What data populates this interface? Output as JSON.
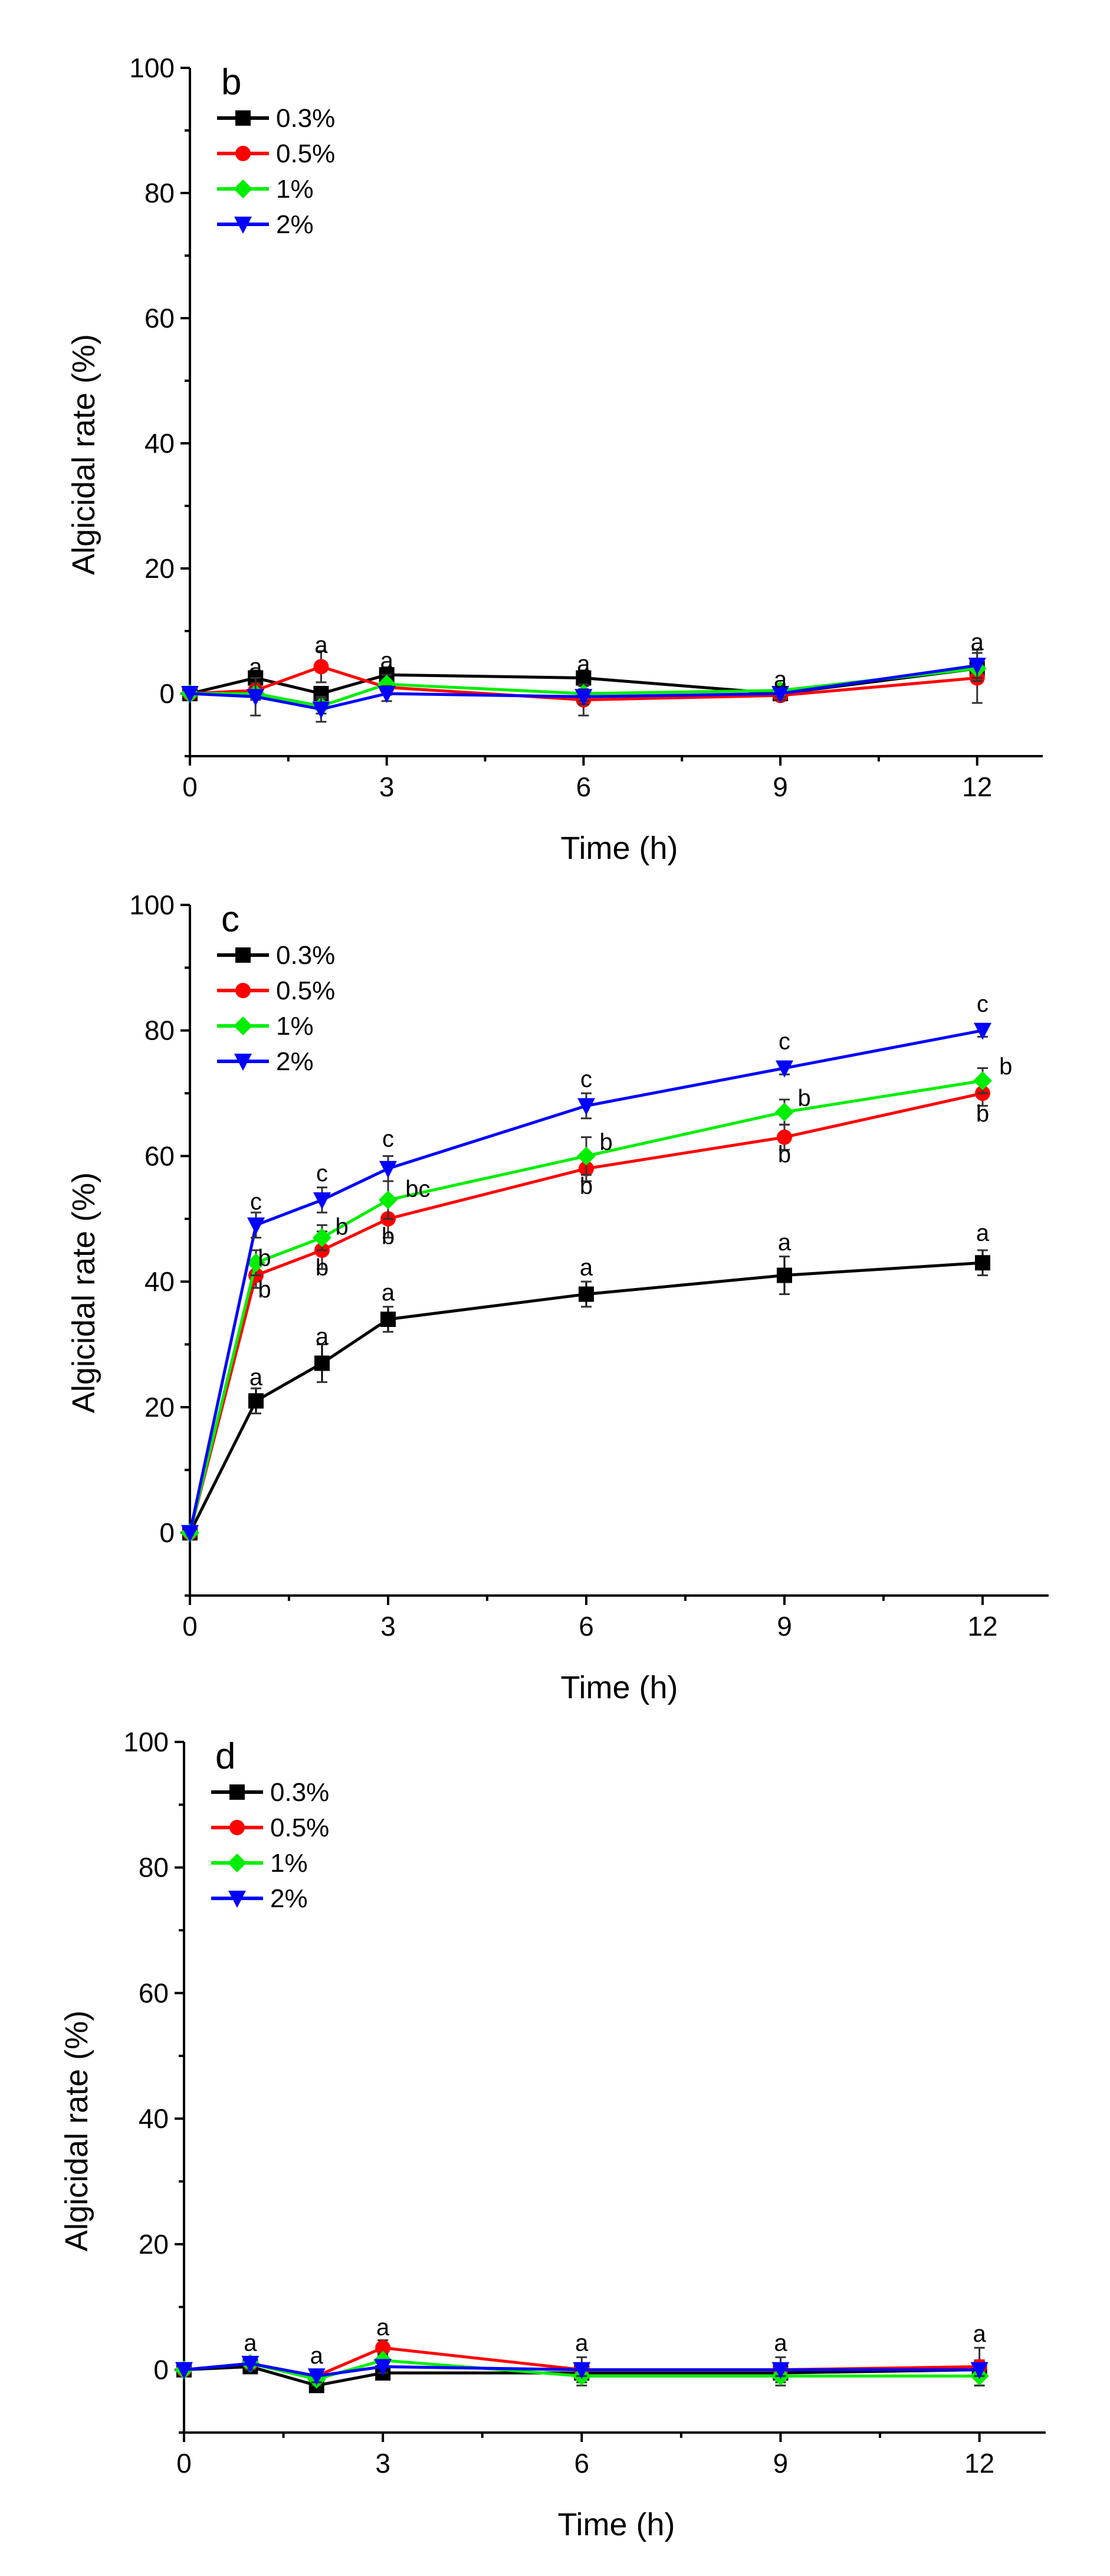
{
  "chart_data": [
    {
      "type": "line",
      "panel_label": "b",
      "xlabel": "Time (h)",
      "ylabel": "Algicidal rate (%)",
      "xlim": [
        0,
        13
      ],
      "ylim": [
        -10,
        100
      ],
      "xticks": [
        0,
        3,
        6,
        9,
        12
      ],
      "yticks": [
        0,
        20,
        40,
        60,
        80,
        100
      ],
      "legend_position": "top-left",
      "x": [
        0,
        1,
        2,
        3,
        6,
        9,
        12
      ],
      "series": [
        {
          "name": "0.3%",
          "color": "#000000",
          "marker": "square",
          "values": [
            0,
            2.5,
            0,
            3,
            2.5,
            0,
            4
          ],
          "errors": [
            0,
            1.2,
            1,
            1.2,
            1.2,
            0.8,
            1.5
          ]
        },
        {
          "name": "0.5%",
          "color": "#ff0000",
          "marker": "circle",
          "values": [
            0,
            0.5,
            4.3,
            1,
            -1,
            -0.3,
            2.5
          ],
          "errors": [
            0,
            1.2,
            2.5,
            1.2,
            2.5,
            0.8,
            4
          ]
        },
        {
          "name": "1%",
          "color": "#00ee00",
          "marker": "diamond",
          "values": [
            0,
            0,
            -2,
            1.5,
            0,
            0.5,
            4
          ],
          "errors": [
            0,
            1,
            1.2,
            1.5,
            1.2,
            1,
            1.5
          ]
        },
        {
          "name": "2%",
          "color": "#0000ff",
          "marker": "triangle-down",
          "values": [
            0,
            -0.5,
            -2.5,
            0,
            -0.5,
            0,
            4.5
          ],
          "errors": [
            0,
            3,
            2,
            1.2,
            1.2,
            1,
            2.5
          ]
        }
      ],
      "annotations": [
        {
          "x": 1,
          "y": 3,
          "text": "a"
        },
        {
          "x": 2,
          "y": 6.5,
          "text": "a"
        },
        {
          "x": 3,
          "y": 4,
          "text": "a"
        },
        {
          "x": 6,
          "y": 3.5,
          "text": "a"
        },
        {
          "x": 9,
          "y": 1,
          "text": "a"
        },
        {
          "x": 12,
          "y": 7,
          "text": "a"
        }
      ]
    },
    {
      "type": "line",
      "panel_label": "c",
      "xlabel": "Time (h)",
      "ylabel": "Algicidal rate (%)",
      "xlim": [
        0,
        13
      ],
      "ylim": [
        -10,
        100
      ],
      "xticks": [
        0,
        3,
        6,
        9,
        12
      ],
      "yticks": [
        0,
        20,
        40,
        60,
        80,
        100
      ],
      "legend_position": "top-left",
      "x": [
        0,
        1,
        2,
        3,
        6,
        9,
        12
      ],
      "series": [
        {
          "name": "0.3%",
          "color": "#000000",
          "marker": "square",
          "values": [
            0,
            21,
            27,
            34,
            38,
            41,
            43
          ],
          "errors": [
            0,
            2,
            3,
            2,
            2,
            3,
            2
          ]
        },
        {
          "name": "0.5%",
          "color": "#ff0000",
          "marker": "circle",
          "values": [
            0,
            41,
            45,
            50,
            58,
            63,
            70
          ],
          "errors": [
            0,
            2,
            3,
            3,
            2,
            2,
            2
          ]
        },
        {
          "name": "1%",
          "color": "#00ee00",
          "marker": "diamond",
          "values": [
            0,
            43,
            47,
            53,
            60,
            67,
            72
          ],
          "errors": [
            0,
            2,
            2,
            3,
            3,
            2,
            2
          ]
        },
        {
          "name": "2%",
          "color": "#0000ff",
          "marker": "triangle-down",
          "values": [
            0,
            49,
            53,
            58,
            68,
            74,
            80
          ],
          "errors": [
            0,
            2,
            2,
            2,
            2,
            1,
            1
          ]
        }
      ],
      "annotations": [
        {
          "x": 1,
          "y": 51.5,
          "text": "c"
        },
        {
          "x": 1.13,
          "y": 42.5,
          "text": "b"
        },
        {
          "x": 1.13,
          "y": 37.5,
          "text": "b"
        },
        {
          "x": 1,
          "y": 23.5,
          "text": "a"
        },
        {
          "x": 2,
          "y": 56,
          "text": "c"
        },
        {
          "x": 2.3,
          "y": 47.5,
          "text": "b"
        },
        {
          "x": 2,
          "y": 41,
          "text": "b"
        },
        {
          "x": 2,
          "y": 30,
          "text": "a"
        },
        {
          "x": 3,
          "y": 61.5,
          "text": "c"
        },
        {
          "x": 3.45,
          "y": 53.5,
          "text": "bc"
        },
        {
          "x": 3,
          "y": 46,
          "text": "b"
        },
        {
          "x": 3,
          "y": 37,
          "text": "a"
        },
        {
          "x": 6,
          "y": 71,
          "text": "c"
        },
        {
          "x": 6.3,
          "y": 61,
          "text": "b"
        },
        {
          "x": 6,
          "y": 54,
          "text": "b"
        },
        {
          "x": 6,
          "y": 41,
          "text": "a"
        },
        {
          "x": 9,
          "y": 77,
          "text": "c"
        },
        {
          "x": 9.3,
          "y": 68,
          "text": "b"
        },
        {
          "x": 9,
          "y": 59,
          "text": "b"
        },
        {
          "x": 9,
          "y": 45,
          "text": "a"
        },
        {
          "x": 12,
          "y": 83,
          "text": "c"
        },
        {
          "x": 12.35,
          "y": 73,
          "text": "b"
        },
        {
          "x": 12,
          "y": 65.5,
          "text": "b"
        },
        {
          "x": 12,
          "y": 46.5,
          "text": "a"
        }
      ]
    },
    {
      "type": "line",
      "panel_label": "d",
      "xlabel": "Time (h)",
      "ylabel": "Algicidal rate (%)",
      "xlim": [
        0,
        13
      ],
      "ylim": [
        -10,
        100
      ],
      "xticks": [
        0,
        3,
        6,
        9,
        12
      ],
      "yticks": [
        0,
        20,
        40,
        60,
        80,
        100
      ],
      "legend_position": "top-left",
      "x": [
        0,
        1,
        2,
        3,
        6,
        9,
        12
      ],
      "series": [
        {
          "name": "0.3%",
          "color": "#000000",
          "marker": "square",
          "values": [
            0,
            0.5,
            -2.5,
            -0.5,
            -0.5,
            -0.5,
            0
          ],
          "errors": [
            0,
            1,
            1,
            1,
            1.5,
            1.5,
            1.5
          ]
        },
        {
          "name": "0.5%",
          "color": "#ff0000",
          "marker": "circle",
          "values": [
            0,
            1,
            -1,
            3.5,
            0,
            0,
            0.5
          ],
          "errors": [
            0,
            1,
            1,
            1.2,
            2,
            2,
            3
          ]
        },
        {
          "name": "1%",
          "color": "#00ee00",
          "marker": "diamond",
          "values": [
            0,
            1,
            -1.5,
            1.5,
            -1,
            -1,
            -1
          ],
          "errors": [
            0,
            1,
            1,
            1,
            1.5,
            1.5,
            1.5
          ]
        },
        {
          "name": "2%",
          "color": "#0000ff",
          "marker": "triangle-down",
          "values": [
            0,
            1,
            -1,
            0.5,
            0,
            0,
            0
          ],
          "errors": [
            0,
            1,
            1,
            1,
            1,
            1,
            1
          ]
        }
      ],
      "annotations": [
        {
          "x": 1,
          "y": 3,
          "text": "a"
        },
        {
          "x": 2,
          "y": 1,
          "text": "a"
        },
        {
          "x": 3,
          "y": 5.5,
          "text": "a"
        },
        {
          "x": 6,
          "y": 3,
          "text": "a"
        },
        {
          "x": 9,
          "y": 3,
          "text": "a"
        },
        {
          "x": 12,
          "y": 4.5,
          "text": "a"
        }
      ]
    }
  ]
}
